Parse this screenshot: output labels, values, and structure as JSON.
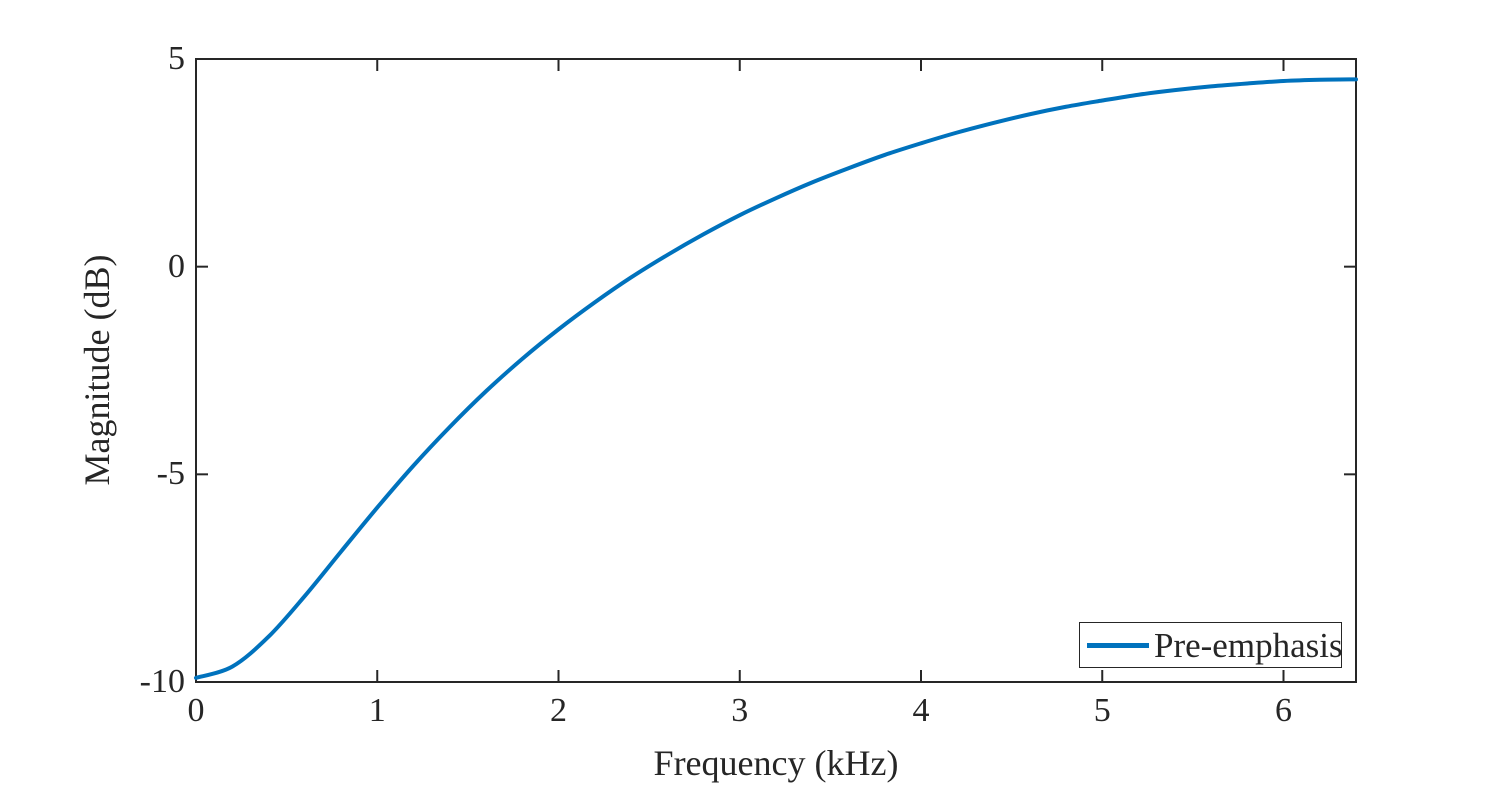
{
  "figure": {
    "background": "#ffffff",
    "axes_color": "#262626",
    "text_color": "#262626"
  },
  "legend": {
    "entries": [
      {
        "label": "Pre-emphasis",
        "color": "#0072BD"
      }
    ],
    "position": "lower right",
    "border_color": "#262626"
  },
  "chart_data": {
    "type": "line",
    "title": "",
    "xlabel": "Frequency (kHz)",
    "ylabel": "Magnitude (dB)",
    "xlim": [
      0,
      6.4
    ],
    "ylim": [
      -10,
      5
    ],
    "x_ticks": [
      0,
      1,
      2,
      3,
      4,
      5,
      6
    ],
    "x_tick_labels": [
      "0",
      "1",
      "2",
      "3",
      "4",
      "5",
      "6"
    ],
    "y_ticks": [
      5,
      0,
      -5,
      -10
    ],
    "y_tick_labels": [
      "5",
      "0",
      "-5",
      "-10"
    ],
    "grid": false,
    "box": true,
    "legend_position": "lower right",
    "series": [
      {
        "name": "Pre-emphasis",
        "color": "#0072BD",
        "line_width": 4,
        "model": "magnitude_dB = 10*log10(1 + a^2 - 2*a*cos(pi*f/6.4)), a = 0.68",
        "x": [
          0.0,
          0.2,
          0.4,
          0.6,
          0.8,
          1.0,
          1.2,
          1.4,
          1.6,
          1.8,
          2.0,
          2.2,
          2.4,
          2.6,
          2.8,
          3.0,
          3.2,
          3.4,
          3.6,
          3.8,
          4.0,
          4.2,
          4.4,
          4.6,
          4.8,
          5.0,
          5.2,
          5.4,
          5.6,
          5.8,
          6.0,
          6.2,
          6.4
        ],
        "y": [
          -9.9,
          -9.63,
          -8.91,
          -7.93,
          -6.86,
          -5.8,
          -4.79,
          -3.86,
          -3.0,
          -2.22,
          -1.51,
          -0.86,
          -0.26,
          0.28,
          0.78,
          1.24,
          1.65,
          2.03,
          2.37,
          2.69,
          2.97,
          3.23,
          3.46,
          3.67,
          3.85,
          4.0,
          4.14,
          4.25,
          4.34,
          4.41,
          4.47,
          4.5,
          4.51
        ]
      }
    ]
  }
}
